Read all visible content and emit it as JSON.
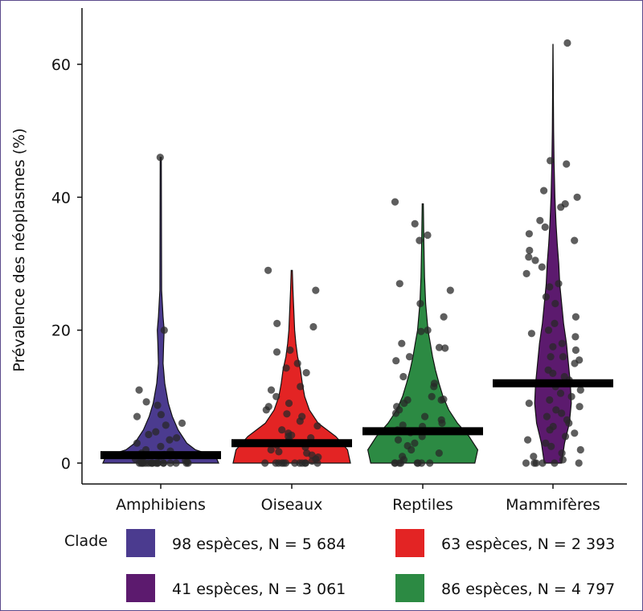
{
  "chart_data": {
    "type": "violin",
    "ylabel": "Prévalence des néoplasmes (%)",
    "xlabel": "",
    "ylim": [
      0,
      68
    ],
    "yticks": [
      "0",
      "20",
      "40",
      "60"
    ],
    "ytick_values": [
      0,
      20,
      40,
      60
    ],
    "grid": false,
    "legend": {
      "title": "Clade",
      "placement": "bottom",
      "entries": [
        {
          "label": "98 espèces, N = 5 684",
          "color": "#4b3b8f"
        },
        {
          "label": "63 espèces, N = 2 393",
          "color": "#e32424"
        },
        {
          "label": "41 espèces, N = 3 061",
          "color": "#5c1a6e"
        },
        {
          "label": "86 espèces, N = 4 797",
          "color": "#2c8a43"
        }
      ]
    },
    "categories": [
      "Amphibiens",
      "Oiseaux",
      "Reptiles",
      "Mammifères"
    ],
    "series": [
      {
        "color": "#4b3b8f",
        "median": 1.2,
        "max": 46,
        "density": [
          [
            0,
            1.0
          ],
          [
            1,
            0.95
          ],
          [
            2,
            0.6
          ],
          [
            3,
            0.45
          ],
          [
            5,
            0.3
          ],
          [
            7,
            0.2
          ],
          [
            9,
            0.13
          ],
          [
            12,
            0.07
          ],
          [
            15,
            0.04
          ],
          [
            18,
            0.05
          ],
          [
            20,
            0.06
          ],
          [
            22,
            0.04
          ],
          [
            26,
            0.015
          ],
          [
            35,
            0.012
          ],
          [
            46,
            0.01
          ]
        ],
        "points": [
          46,
          20,
          11,
          9.2,
          8.7,
          7.3,
          7.0,
          6.0,
          5.7,
          4.7,
          4.3,
          3.8,
          3.5,
          3.0,
          2.5,
          2.0,
          1.8,
          1.5,
          1.3,
          1.0,
          0.8,
          0.6,
          0.4,
          0.2,
          0,
          0,
          0,
          0,
          0,
          0,
          0,
          0,
          0,
          0,
          0,
          0,
          0,
          0,
          0,
          0,
          0,
          0
        ]
      },
      {
        "color": "#e32424",
        "median": 3.0,
        "max": 29,
        "density": [
          [
            0,
            1.0
          ],
          [
            2,
            0.95
          ],
          [
            4,
            0.75
          ],
          [
            6,
            0.45
          ],
          [
            8,
            0.3
          ],
          [
            10,
            0.22
          ],
          [
            12,
            0.18
          ],
          [
            14,
            0.15
          ],
          [
            16,
            0.1
          ],
          [
            18,
            0.07
          ],
          [
            20,
            0.05
          ],
          [
            22,
            0.04
          ],
          [
            24,
            0.03
          ],
          [
            26,
            0.02
          ],
          [
            29,
            0.01
          ]
        ],
        "points": [
          29,
          26,
          21,
          20.5,
          17,
          16.7,
          15,
          14.3,
          13.6,
          11.5,
          11,
          10,
          9,
          8.5,
          8,
          7.4,
          7,
          6.3,
          5.6,
          5,
          4.5,
          4.2,
          4,
          3.8,
          3.5,
          3.2,
          3,
          2.7,
          2.4,
          2,
          1.7,
          1.5,
          1.2,
          0.9,
          0.6,
          0.3,
          0,
          0,
          0,
          0,
          0,
          0,
          0,
          0,
          0,
          0,
          0,
          0
        ]
      },
      {
        "color": "#2c8a43",
        "median": 4.8,
        "max": 39,
        "density": [
          [
            0,
            0.9
          ],
          [
            2,
            0.95
          ],
          [
            4,
            0.8
          ],
          [
            6,
            0.6
          ],
          [
            8,
            0.45
          ],
          [
            10,
            0.35
          ],
          [
            12,
            0.28
          ],
          [
            14,
            0.22
          ],
          [
            16,
            0.17
          ],
          [
            18,
            0.13
          ],
          [
            20,
            0.09
          ],
          [
            24,
            0.05
          ],
          [
            28,
            0.03
          ],
          [
            33,
            0.02
          ],
          [
            39,
            0.01
          ]
        ],
        "points": [
          39.3,
          36,
          34.3,
          33.5,
          27,
          26,
          24,
          22,
          20,
          19.8,
          18,
          17.4,
          17.3,
          16,
          15.4,
          13,
          12,
          11.5,
          10,
          9.6,
          9.5,
          9.5,
          9,
          8.5,
          8,
          7.5,
          7,
          6.5,
          6,
          5.7,
          5.5,
          5,
          4.6,
          4,
          3.5,
          3,
          2.6,
          2,
          1.5,
          1,
          0.5,
          0,
          0,
          0,
          0,
          0,
          0,
          0,
          0
        ]
      },
      {
        "color": "#5c1a6e",
        "median": 12.0,
        "max": 63,
        "density": [
          [
            0,
            0.45
          ],
          [
            3,
            0.6
          ],
          [
            6,
            0.85
          ],
          [
            9,
            0.95
          ],
          [
            12,
            0.9
          ],
          [
            15,
            0.8
          ],
          [
            18,
            0.7
          ],
          [
            21,
            0.55
          ],
          [
            24,
            0.45
          ],
          [
            27,
            0.35
          ],
          [
            30,
            0.3
          ],
          [
            33,
            0.22
          ],
          [
            36,
            0.16
          ],
          [
            40,
            0.1
          ],
          [
            45,
            0.06
          ],
          [
            50,
            0.035
          ],
          [
            55,
            0.02
          ],
          [
            63,
            0.005
          ]
        ],
        "points": [
          63.2,
          45.5,
          45,
          41,
          40,
          39,
          38.5,
          36.5,
          35.5,
          34.5,
          33.5,
          32,
          31,
          30.5,
          29.5,
          28.5,
          27,
          26.5,
          25,
          24,
          22,
          21,
          20,
          19.5,
          19,
          18,
          17.5,
          17,
          16,
          16,
          15.5,
          15,
          14,
          13.5,
          13,
          12.5,
          12,
          11.5,
          11,
          10.5,
          10,
          9.5,
          9,
          8.5,
          8,
          7.5,
          7,
          6.5,
          6,
          5.5,
          5,
          4.5,
          4,
          3.5,
          3,
          2.5,
          2,
          1.5,
          1,
          0.5,
          0,
          0,
          0,
          0,
          0,
          0
        ]
      }
    ]
  }
}
